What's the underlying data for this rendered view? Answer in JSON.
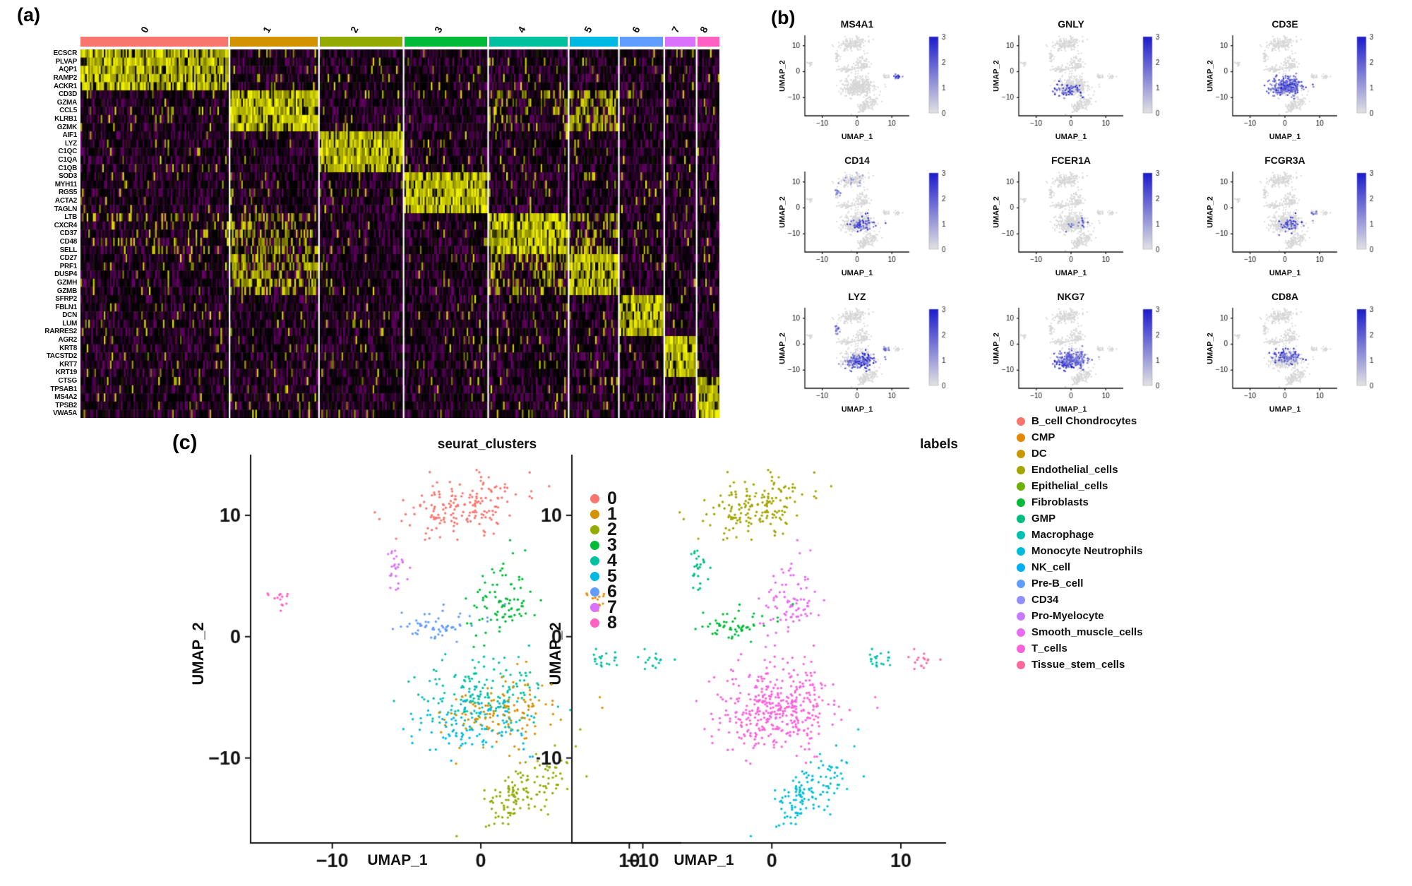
{
  "figure": {
    "panels": {
      "a": "(a)",
      "b": "(b)",
      "c": "(c)"
    }
  },
  "chart_data": [
    {
      "id": "marker_heatmap",
      "type": "heatmap",
      "colorscale": {
        "low": "#FF00FF",
        "mid": "#000000",
        "high": "#FFFF00",
        "min": -2,
        "max": 2
      },
      "clusters": [
        {
          "id": "0",
          "color": "#F8766D",
          "weight": 215
        },
        {
          "id": "1",
          "color": "#D39200",
          "weight": 127
        },
        {
          "id": "2",
          "color": "#93AA00",
          "weight": 120
        },
        {
          "id": "3",
          "color": "#00BA38",
          "weight": 120
        },
        {
          "id": "4",
          "color": "#00C19F",
          "weight": 114
        },
        {
          "id": "5",
          "color": "#00B9E3",
          "weight": 70
        },
        {
          "id": "6",
          "color": "#619CFF",
          "weight": 63
        },
        {
          "id": "7",
          "color": "#DB72FB",
          "weight": 44
        },
        {
          "id": "8",
          "color": "#FF61C3",
          "weight": 32
        }
      ],
      "genes": [
        {
          "name": "ECSCR",
          "cluster": 0
        },
        {
          "name": "PLVAP",
          "cluster": 0
        },
        {
          "name": "AQP1",
          "cluster": 0
        },
        {
          "name": "RAMP2",
          "cluster": 0
        },
        {
          "name": "ACKR1",
          "cluster": 0
        },
        {
          "name": "CD3D",
          "cluster": 1
        },
        {
          "name": "GZMA",
          "cluster": 1
        },
        {
          "name": "CCL5",
          "cluster": 1
        },
        {
          "name": "KLRB1",
          "cluster": 1
        },
        {
          "name": "GZMK",
          "cluster": 1
        },
        {
          "name": "AIF1",
          "cluster": 2
        },
        {
          "name": "LYZ",
          "cluster": 2
        },
        {
          "name": "C1QC",
          "cluster": 2
        },
        {
          "name": "C1QA",
          "cluster": 2
        },
        {
          "name": "C1QB",
          "cluster": 2
        },
        {
          "name": "SOD3",
          "cluster": 3
        },
        {
          "name": "MYH11",
          "cluster": 3
        },
        {
          "name": "RGS5",
          "cluster": 3
        },
        {
          "name": "ACTA2",
          "cluster": 3
        },
        {
          "name": "TAGLN",
          "cluster": 3
        },
        {
          "name": "LTB",
          "cluster": 4
        },
        {
          "name": "CXCR4",
          "cluster": 4
        },
        {
          "name": "CD37",
          "cluster": 4
        },
        {
          "name": "CD48",
          "cluster": 4
        },
        {
          "name": "SELL",
          "cluster": 4
        },
        {
          "name": "CD27",
          "cluster": 5
        },
        {
          "name": "PRF1",
          "cluster": 5
        },
        {
          "name": "DUSP4",
          "cluster": 5
        },
        {
          "name": "GZMH",
          "cluster": 5
        },
        {
          "name": "GZMB",
          "cluster": 5
        },
        {
          "name": "SFRP2",
          "cluster": 6
        },
        {
          "name": "FBLN1",
          "cluster": 6
        },
        {
          "name": "DCN",
          "cluster": 6
        },
        {
          "name": "LUM",
          "cluster": 6
        },
        {
          "name": "RARRES2",
          "cluster": 6
        },
        {
          "name": "AGR2",
          "cluster": 7
        },
        {
          "name": "KRT8",
          "cluster": 7
        },
        {
          "name": "TACSTD2",
          "cluster": 7
        },
        {
          "name": "KRT7",
          "cluster": 7
        },
        {
          "name": "KRT19",
          "cluster": 7
        },
        {
          "name": "CTSG",
          "cluster": 8
        },
        {
          "name": "TPSAB1",
          "cluster": 8
        },
        {
          "name": "MS4A2",
          "cluster": 8
        },
        {
          "name": "TPSB2",
          "cluster": 8
        },
        {
          "name": "VWA5A",
          "cluster": 8
        }
      ],
      "cross_expression": {
        "1": {
          "4": 0.2,
          "5": 0.55
        },
        "4": {
          "0": 0.08,
          "1": 0.45,
          "5": 0.35
        },
        "5": {
          "1": 0.5,
          "4": 0.3
        }
      }
    },
    {
      "id": "feature_plots",
      "type": "scatter",
      "xlabel": "UMAP_1",
      "ylabel": "UMAP_2",
      "xlim": [
        -15,
        15
      ],
      "ylim": [
        -17,
        14
      ],
      "xticks": [
        -10,
        0,
        10
      ],
      "yticks": [
        10,
        0,
        -10
      ],
      "base_color": "#D6D6D6",
      "colorbar": {
        "min": 0,
        "max": 3,
        "ticks": [
          3,
          2,
          1,
          0
        ],
        "low": "#E2E2E2",
        "high": "#1C1CCD"
      },
      "plots": [
        {
          "gene": "MS4A1",
          "highlights": [
            {
              "blob": "b8",
              "frac": 0.95,
              "max": 3
            }
          ]
        },
        {
          "gene": "GNLY",
          "highlights": [
            {
              "blob": "b5c",
              "frac": 0.5,
              "max": 3.2
            }
          ]
        },
        {
          "gene": "CD3E",
          "highlights": [
            {
              "blob": "b5a",
              "frac": 0.75,
              "max": 3
            },
            {
              "blob": "b5b",
              "frac": 0.7,
              "max": 3
            },
            {
              "blob": "b5c",
              "frac": 0.45,
              "max": 2.4
            }
          ]
        },
        {
          "gene": "CD14",
          "highlights": [
            {
              "blob": "b5b",
              "frac": 0.55,
              "max": 3
            },
            {
              "blob": "b1",
              "frac": 0.5,
              "max": 2
            },
            {
              "blob": "b0",
              "frac": 0.1,
              "max": 1.4
            }
          ]
        },
        {
          "gene": "FCER1A",
          "highlights": [
            {
              "blob": "b5b",
              "frac": 0.16,
              "max": 2.6
            }
          ]
        },
        {
          "gene": "FCGR3A",
          "highlights": [
            {
              "blob": "b5b",
              "frac": 0.35,
              "max": 3
            },
            {
              "blob": "b7",
              "frac": 0.4,
              "max": 2
            }
          ]
        },
        {
          "gene": "LYZ",
          "highlights": [
            {
              "blob": "b5b",
              "frac": 0.92,
              "max": 3.4
            },
            {
              "blob": "b5c",
              "frac": 0.35,
              "max": 2
            },
            {
              "blob": "b1",
              "frac": 0.5,
              "max": 2.2
            },
            {
              "blob": "b7",
              "frac": 0.5,
              "max": 2
            }
          ]
        },
        {
          "gene": "NKG7",
          "highlights": [
            {
              "blob": "b5c",
              "frac": 0.92,
              "max": 3.4
            },
            {
              "blob": "b5a",
              "frac": 0.45,
              "max": 2.4
            },
            {
              "blob": "b5b",
              "frac": 0.3,
              "max": 2
            }
          ]
        },
        {
          "gene": "CD8A",
          "highlights": [
            {
              "blob": "b5a",
              "frac": 0.55,
              "max": 3
            },
            {
              "blob": "b5b",
              "frac": 0.3,
              "max": 2
            }
          ]
        }
      ]
    },
    {
      "id": "umap_layout",
      "type": "scatter",
      "blobs": [
        {
          "id": "b0",
          "cx": -1.2,
          "cy": 10.8,
          "sx": 2.3,
          "sy": 1.1,
          "rot": 18,
          "n": 170,
          "cluster": 0,
          "label": 3
        },
        {
          "id": "b1",
          "cx": -5.6,
          "cy": 5.6,
          "sx": 0.45,
          "sy": 0.8,
          "rot": 0,
          "n": 26,
          "cluster": 7,
          "label": 6
        },
        {
          "id": "b2",
          "cx": -13.6,
          "cy": 3.1,
          "sx": 0.5,
          "sy": 0.45,
          "rot": 0,
          "n": 14,
          "cluster": 8,
          "label": 1
        },
        {
          "id": "b3",
          "cx": 1.6,
          "cy": 3.4,
          "sx": 1.0,
          "sy": 1.7,
          "rot": -10,
          "n": 85,
          "cluster": 3,
          "label": 13
        },
        {
          "id": "b4",
          "cx": -2.6,
          "cy": 0.9,
          "sx": 1.6,
          "sy": 0.6,
          "rot": 8,
          "n": 55,
          "cluster": 6,
          "label": 5
        },
        {
          "id": "b5a",
          "cx": 0.3,
          "cy": -4.6,
          "sx": 2.1,
          "sy": 1.5,
          "rot": 0,
          "n": 150,
          "cluster": 4,
          "label": 14
        },
        {
          "id": "b5b",
          "cx": 1.3,
          "cy": -6.4,
          "sx": 1.9,
          "sy": 1.4,
          "rot": 0,
          "n": 130,
          "cluster": 1,
          "label": 14
        },
        {
          "id": "b5c",
          "cx": -0.6,
          "cy": -7.0,
          "sx": 2.0,
          "sy": 1.3,
          "rot": 0,
          "n": 120,
          "cluster": 5,
          "label": 14
        },
        {
          "id": "b6",
          "cx": 3.0,
          "cy": -12.6,
          "sx": 1.9,
          "sy": 1.0,
          "rot": 38,
          "n": 130,
          "cluster": 2,
          "label": 8
        },
        {
          "id": "b7",
          "cx": 8.1,
          "cy": -1.9,
          "sx": 0.7,
          "sy": 0.45,
          "rot": 0,
          "n": 20,
          "cluster": 4,
          "label": 7
        },
        {
          "id": "b8",
          "cx": 11.6,
          "cy": -2.0,
          "sx": 0.55,
          "sy": 0.4,
          "rot": 0,
          "n": 16,
          "cluster": 4,
          "label": 15
        }
      ]
    },
    {
      "id": "umap_clusters",
      "type": "scatter",
      "title": "seurat_clusters",
      "xlabel": "UMAP_1",
      "ylabel": "UMAP_2",
      "xlim": [
        -15.5,
        13.5
      ],
      "ylim": [
        -17,
        15
      ],
      "xticks": [
        -10,
        0,
        10
      ],
      "yticks": [
        10,
        0,
        -10
      ],
      "legend": {
        "items": [
          {
            "label": "0",
            "color": "#F8766D"
          },
          {
            "label": "1",
            "color": "#D39200"
          },
          {
            "label": "2",
            "color": "#93AA00"
          },
          {
            "label": "3",
            "color": "#00BA38"
          },
          {
            "label": "4",
            "color": "#00C19F"
          },
          {
            "label": "5",
            "color": "#00B9E3"
          },
          {
            "label": "6",
            "color": "#619CFF"
          },
          {
            "label": "7",
            "color": "#DB72FB"
          },
          {
            "label": "8",
            "color": "#FF61C3"
          }
        ]
      }
    },
    {
      "id": "umap_labels",
      "type": "scatter",
      "title": "labels",
      "xlabel": "UMAP_1",
      "ylabel": "UMAP_2",
      "xlim": [
        -15.5,
        13.5
      ],
      "ylim": [
        -17,
        15
      ],
      "xticks": [
        -10,
        0,
        10
      ],
      "yticks": [
        10,
        0,
        -10
      ],
      "legend": {
        "items": [
          {
            "label": "B_cell Chondrocytes",
            "color": "#F8766D"
          },
          {
            "label": "CMP",
            "color": "#E58700"
          },
          {
            "label": "DC",
            "color": "#C99800"
          },
          {
            "label": "Endothelial_cells",
            "color": "#A3A500"
          },
          {
            "label": "Epithelial_cells",
            "color": "#6BB100"
          },
          {
            "label": "Fibroblasts",
            "color": "#00BA38"
          },
          {
            "label": "GMP",
            "color": "#00BF7D"
          },
          {
            "label": "Macrophage",
            "color": "#00C0AF"
          },
          {
            "label": "Monocyte Neutrophils",
            "color": "#00BCD8"
          },
          {
            "label": "NK_cell",
            "color": "#00B0F6"
          },
          {
            "label": "Pre-B_cell",
            "color": "#619CFF"
          },
          {
            "label": "CD34",
            "color": "#9590FF"
          },
          {
            "label": "Pro-Myelocyte",
            "color": "#C77CFF"
          },
          {
            "label": "Smooth_muscle_cells",
            "color": "#E76BF3"
          },
          {
            "label": "T_cells",
            "color": "#FA62DB"
          },
          {
            "label": "Tissue_stem_cells",
            "color": "#FF6A98"
          }
        ]
      }
    }
  ]
}
